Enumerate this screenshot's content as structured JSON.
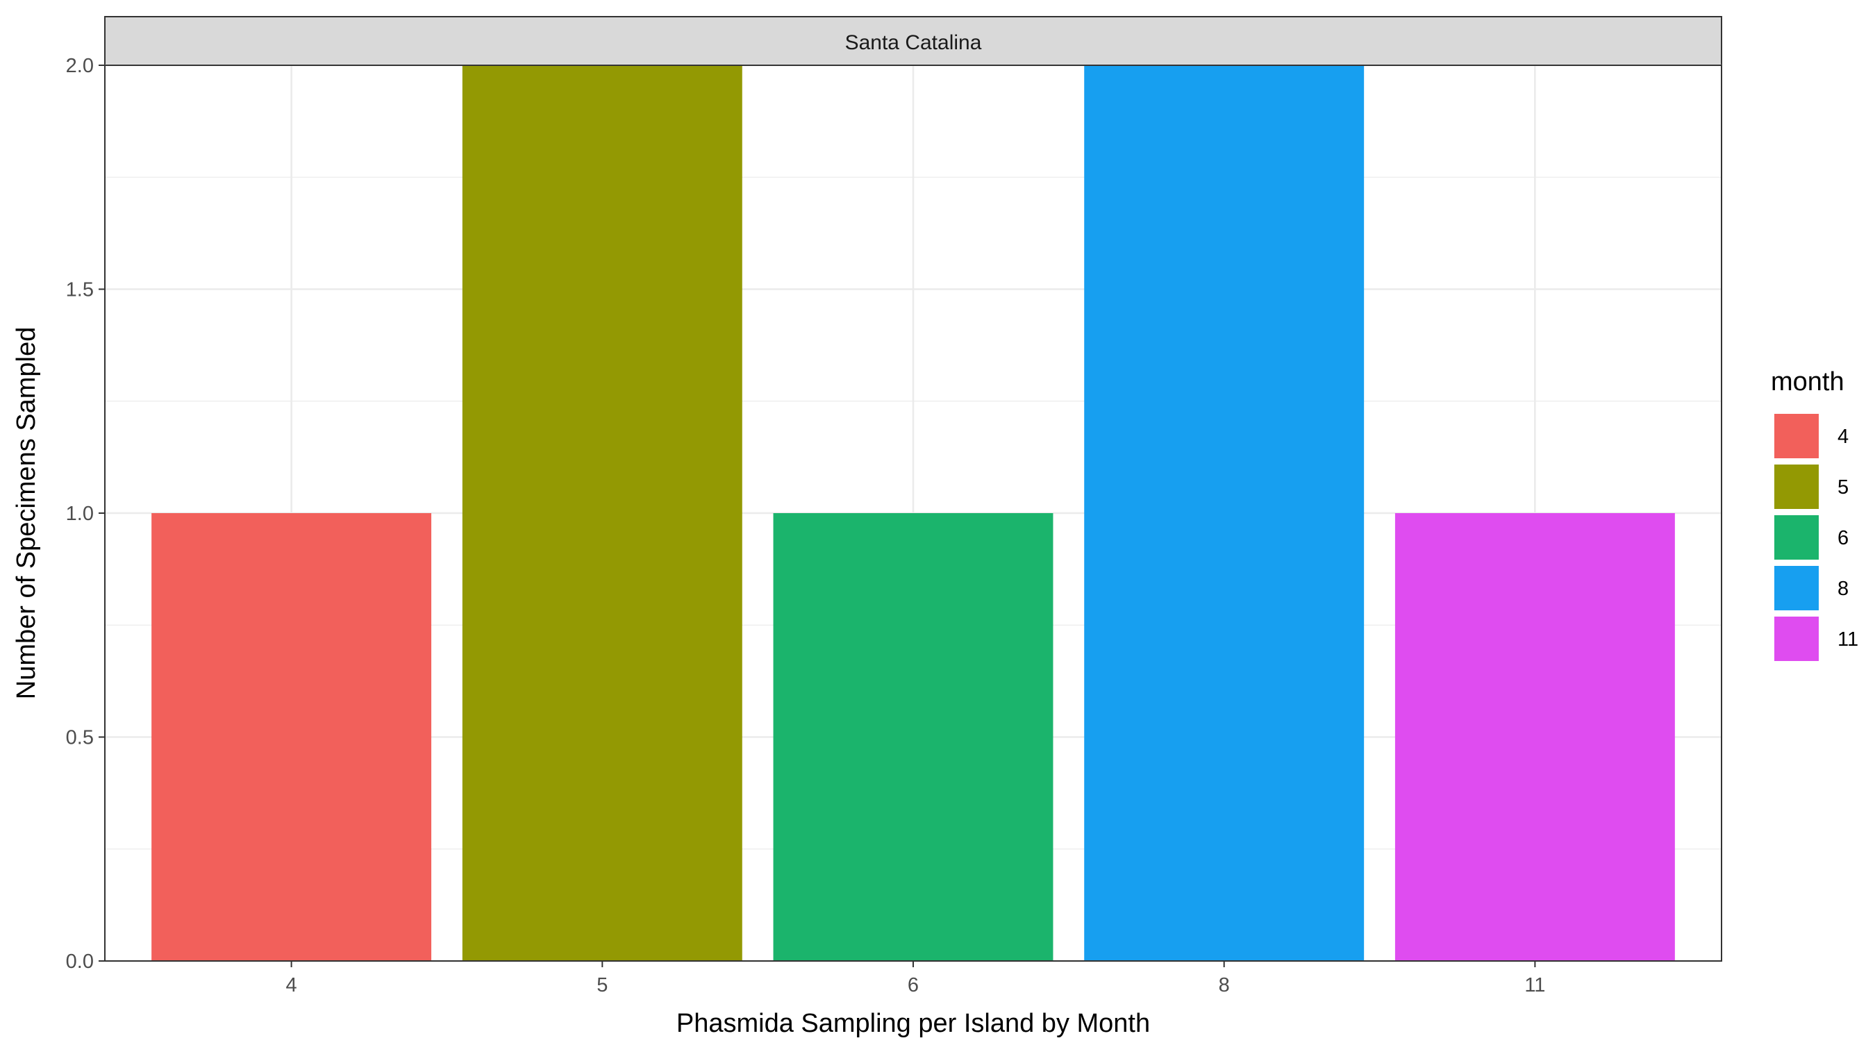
{
  "chart_data": {
    "type": "bar",
    "facet": "Santa Catalina",
    "categories": [
      "4",
      "5",
      "6",
      "8",
      "11"
    ],
    "values": [
      1,
      2,
      1,
      2,
      1
    ],
    "colors": [
      "#F2605B",
      "#939903",
      "#1BB46C",
      "#179FF0",
      "#DF4CF0"
    ],
    "xlabel": "Phasmida Sampling per Island by Month",
    "ylabel": "Number of Specimens Sampled",
    "ylim": [
      0,
      2
    ],
    "yticks": [
      0,
      0.5,
      1,
      1.5,
      2
    ],
    "ytick_labels": [
      "0.0",
      "0.5",
      "1.0",
      "1.5",
      "2.0"
    ],
    "grid": true,
    "legend": {
      "title": "month",
      "position": "right",
      "items": [
        "4",
        "5",
        "6",
        "8",
        "11"
      ]
    }
  }
}
